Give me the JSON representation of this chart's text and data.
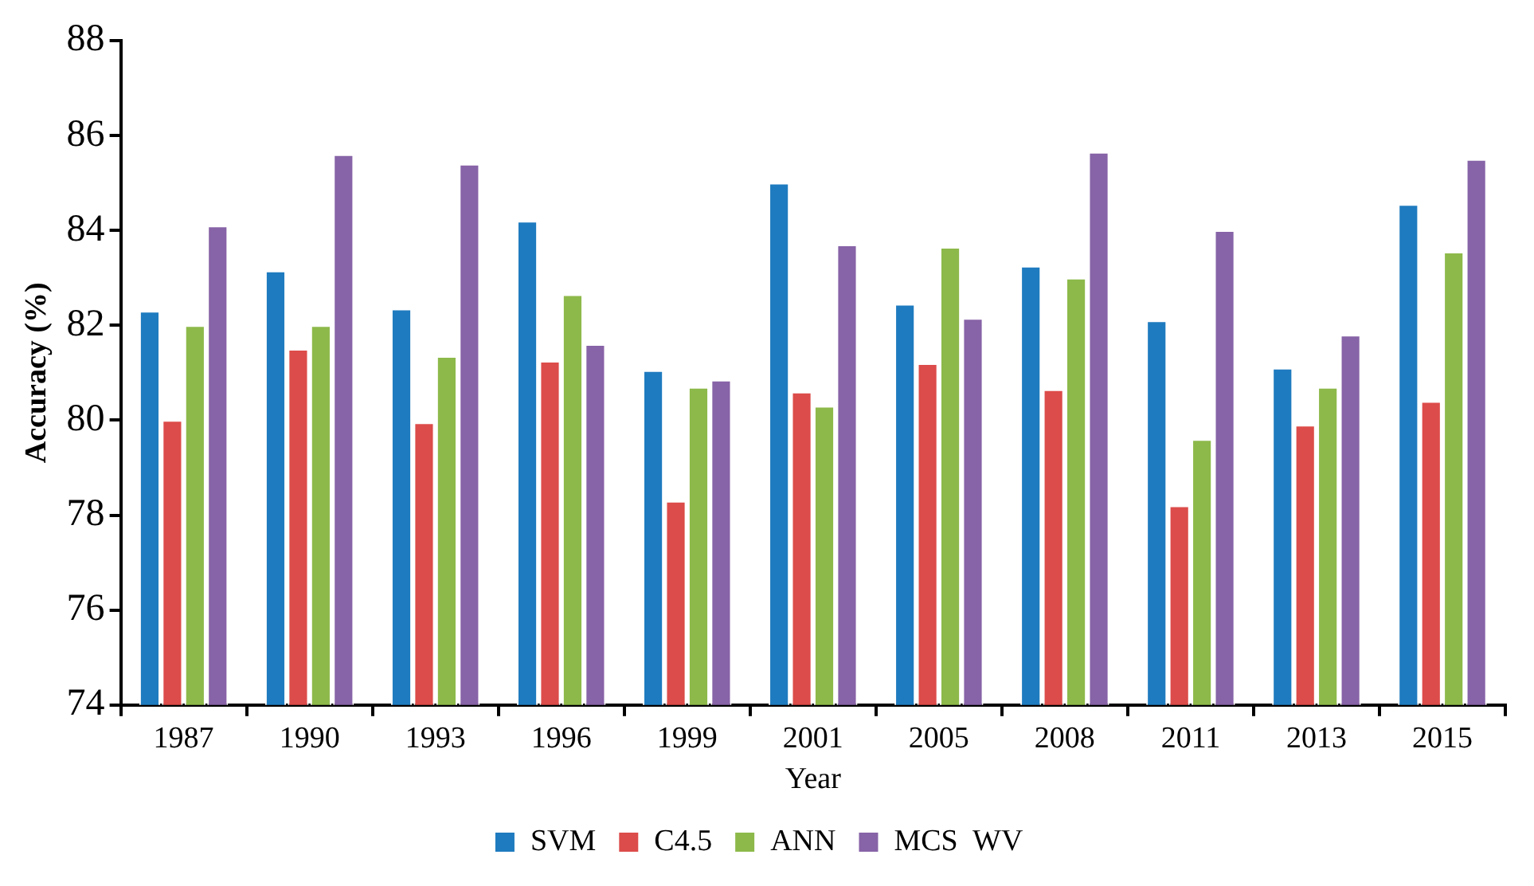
{
  "chart_data": {
    "type": "bar",
    "xlabel": "Year",
    "ylabel": "Accuracy (%)",
    "categories": [
      "1987",
      "1990",
      "1993",
      "1996",
      "1999",
      "2001",
      "2005",
      "2008",
      "2011",
      "2013",
      "2015"
    ],
    "series": [
      {
        "name": "SVM",
        "color": "#1f7bbf",
        "values": [
          82.3,
          83.15,
          82.35,
          84.2,
          81.05,
          85.0,
          82.45,
          83.25,
          82.1,
          81.1,
          84.55
        ]
      },
      {
        "name": "C4.5",
        "color": "#dc4c4a",
        "values": [
          80.0,
          81.5,
          79.95,
          81.25,
          78.3,
          80.6,
          81.2,
          80.65,
          78.2,
          79.9,
          80.4
        ]
      },
      {
        "name": "ANN",
        "color": "#8db94a",
        "values": [
          82.0,
          82.0,
          81.35,
          82.65,
          80.7,
          80.3,
          83.65,
          83.0,
          79.6,
          80.7,
          83.55
        ]
      },
      {
        "name": "MCS  WV",
        "color": "#8763a7",
        "values": [
          84.1,
          85.6,
          85.4,
          81.6,
          80.85,
          83.7,
          82.15,
          85.65,
          84.0,
          81.8,
          85.5
        ]
      }
    ],
    "ylim": [
      74,
      88
    ],
    "yticks": [
      74,
      76,
      78,
      80,
      82,
      84,
      86,
      88
    ],
    "grid": false,
    "legend": "bottom"
  }
}
